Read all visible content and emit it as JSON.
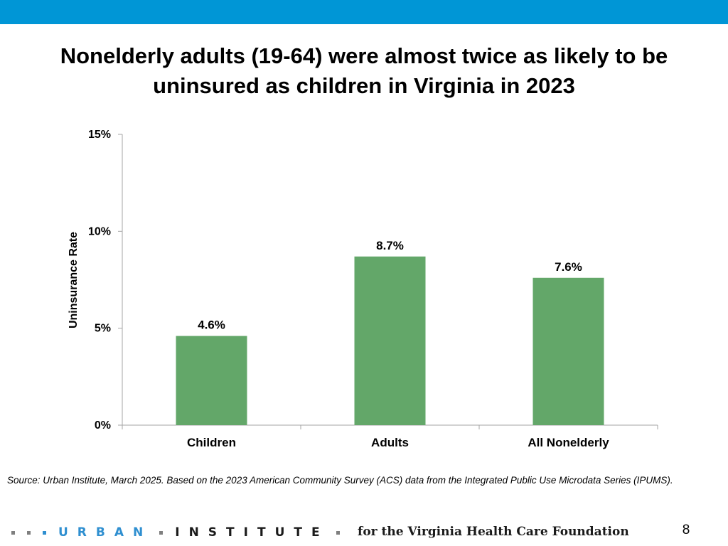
{
  "colors": {
    "accent": "#0096d6",
    "bar": "#63a769",
    "axis": "#a6a6a6",
    "logo_blue": "#2f8fd0"
  },
  "slide": {
    "title": "Nonelderly adults (19-64) were almost twice as likely to be uninsured as children in Virginia in 2023",
    "source": "Source: Urban Institute, March 2025. Based on the 2023 American Community Survey (ACS) data from the Integrated Public Use Microdata Series (IPUMS).",
    "page_number": "8"
  },
  "footer": {
    "logo_urban": "URBAN",
    "logo_institute": "INSTITUTE",
    "tagline": "for the Virginia Health Care Foundation"
  },
  "chart_data": {
    "type": "bar",
    "title": "Nonelderly adults (19-64) were almost twice as likely to be uninsured as children in Virginia in 2023",
    "categories": [
      "Children",
      "Adults",
      "All Nonelderly"
    ],
    "values": [
      4.6,
      8.7,
      7.6
    ],
    "data_labels": [
      "4.6%",
      "8.7%",
      "7.6%"
    ],
    "xlabel": "",
    "ylabel": "Uninsurance Rate",
    "ylim": [
      0,
      15
    ],
    "yticks": [
      0,
      5,
      10,
      15
    ],
    "ytick_labels": [
      "0%",
      "5%",
      "10%",
      "15%"
    ],
    "grid": false,
    "legend": "none"
  }
}
